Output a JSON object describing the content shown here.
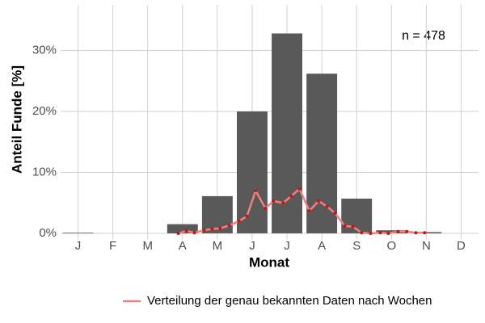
{
  "chart_data": {
    "type": "bar",
    "ylabel": "Anteil Funde [%]",
    "xlabel": "Monat",
    "annotation": "n = 478",
    "categories": [
      "J",
      "F",
      "M",
      "A",
      "M",
      "J",
      "J",
      "A",
      "S",
      "O",
      "N",
      "D"
    ],
    "values": [
      0.1,
      0,
      0,
      1.5,
      6.1,
      20.0,
      32.8,
      26.2,
      5.7,
      0.5,
      0.2,
      0
    ],
    "color": "#595959",
    "xlim": [
      0.5,
      12.5
    ],
    "ylim": [
      -1,
      37.5
    ],
    "yticks": [
      {
        "value": 0,
        "label": "0%"
      },
      {
        "value": 10,
        "label": "10%"
      },
      {
        "value": 20,
        "label": "20%"
      },
      {
        "value": 30,
        "label": "30%"
      }
    ],
    "grid": true,
    "line": {
      "name": "Verteilung der genau bekannten Daten nach Wochen",
      "color": "#f08080",
      "point_color": "#cc1111",
      "x": [
        3.88,
        4.11,
        4.34,
        4.62,
        4.85,
        5.08,
        5.34,
        5.62,
        5.85,
        6.1,
        6.38,
        6.61,
        6.89,
        7.12,
        7.36,
        7.64,
        7.91,
        8.15,
        8.38,
        8.66,
        8.89,
        9.14,
        9.4,
        9.68,
        9.91,
        10.19,
        10.44,
        10.7,
        10.95
      ],
      "values": [
        0.0,
        0.4,
        0.1,
        0.5,
        0.7,
        0.8,
        1.3,
        2.0,
        2.8,
        7.0,
        4.1,
        5.3,
        5.0,
        6.1,
        7.3,
        3.7,
        5.3,
        4.4,
        3.3,
        1.2,
        1.1,
        0.1,
        0.0,
        0.1,
        0.0,
        0.3,
        0.3,
        0.1,
        0.1
      ]
    },
    "legend": "bottom"
  }
}
